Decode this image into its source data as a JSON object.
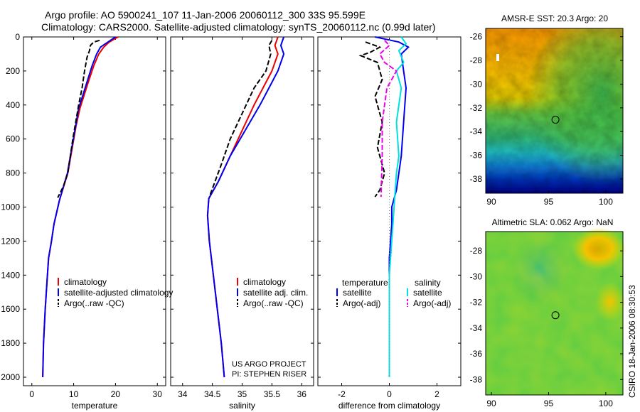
{
  "header": {
    "line1": "Argo profile: AO 5900241_107 11-Jan-2006 20060112_300 33S 95.599E",
    "line2": "Climatology: CARS2000. Satellite-adjusted climatology: synTS_20060112.nc (0.99d later)"
  },
  "colors": {
    "climatology": "#ee0000",
    "satellite": "#0000ee",
    "argo": "#000000",
    "salinity_satellite": "#00e0e0",
    "salinity_argo": "#ee00ee"
  },
  "chart_data": [
    {
      "id": "temperature",
      "type": "line",
      "xlabel": "temperature",
      "xlim": [
        -2,
        32
      ],
      "xticks": [
        0,
        10,
        20,
        30
      ],
      "ylim": [
        2050,
        0
      ],
      "yticks": [
        0,
        200,
        400,
        600,
        800,
        1000,
        1200,
        1400,
        1600,
        1800,
        2000
      ],
      "ylabel": "",
      "legend": [
        "climatology",
        "satellite-adjusted climatology",
        "Argo(..raw -QC)"
      ],
      "series": [
        {
          "name": "climatology",
          "color": "#ee0000",
          "style": "solid",
          "x": [
            20.6,
            18.5,
            17.2,
            16.0,
            14.8,
            13.3,
            11.5,
            10.6,
            8.6,
            6.6,
            5.3,
            4.7,
            4.0,
            3.6,
            3.2,
            2.8,
            2.6
          ],
          "y": [
            0,
            30,
            60,
            100,
            170,
            280,
            420,
            520,
            800,
            960,
            1100,
            1200,
            1300,
            1450,
            1600,
            1800,
            2000
          ]
        },
        {
          "name": "satellite-adjusted climatology",
          "color": "#0000ee",
          "style": "solid",
          "x": [
            20.0,
            18.2,
            16.4,
            15.5,
            14.4,
            13.0,
            11.2,
            10.5,
            8.5,
            6.6,
            5.3,
            4.7,
            4.0,
            3.6,
            3.2,
            2.8,
            2.6
          ],
          "y": [
            0,
            30,
            60,
            100,
            170,
            280,
            420,
            520,
            800,
            960,
            1100,
            1200,
            1300,
            1450,
            1600,
            1800,
            2000
          ]
        },
        {
          "name": "Argo(..raw -QC)",
          "color": "#000000",
          "style": "dashed",
          "x": [
            16.2,
            14.8,
            14.0,
            13.8,
            13.2,
            12.6,
            12.0,
            11.2,
            10.5,
            9.8,
            9.2,
            8.6,
            7.5,
            6.2
          ],
          "y": [
            20,
            30,
            50,
            80,
            120,
            200,
            300,
            400,
            500,
            600,
            700,
            800,
            880,
            945
          ]
        }
      ]
    },
    {
      "id": "salinity",
      "type": "line",
      "xlabel": "salinity",
      "xlim": [
        33.8,
        36.2
      ],
      "xticks": [
        34,
        34.5,
        35,
        35.5,
        36
      ],
      "ylim": [
        2050,
        0
      ],
      "legend": [
        "climatology",
        "satellite adj. clim.",
        "Argo(..raw -QC)"
      ],
      "annotation": [
        "US ARGO PROJECT",
        "PI: STEPHEN RISER"
      ],
      "series": [
        {
          "name": "climatology",
          "color": "#ee0000",
          "style": "solid",
          "x": [
            35.6,
            35.55,
            35.6,
            35.5,
            35.35,
            35.2,
            35.0,
            34.8,
            34.6,
            34.44,
            34.42,
            34.45,
            34.5,
            34.55,
            34.6,
            34.65,
            34.7
          ],
          "y": [
            0,
            50,
            100,
            200,
            300,
            400,
            550,
            700,
            850,
            950,
            1050,
            1200,
            1350,
            1500,
            1650,
            1800,
            2000
          ]
        },
        {
          "name": "satellite adj. clim.",
          "color": "#0000ee",
          "style": "solid",
          "x": [
            35.7,
            35.65,
            35.7,
            35.6,
            35.45,
            35.3,
            35.05,
            34.8,
            34.6,
            34.44,
            34.42,
            34.45,
            34.5,
            34.55,
            34.6,
            34.65,
            34.7
          ],
          "y": [
            0,
            50,
            100,
            200,
            300,
            400,
            550,
            700,
            850,
            950,
            1050,
            1200,
            1350,
            1500,
            1650,
            1800,
            2000
          ]
        },
        {
          "name": "Argo(..raw -QC)",
          "color": "#000000",
          "style": "dashed",
          "x": [
            35.5,
            35.45,
            35.48,
            35.4,
            35.2,
            35.0,
            34.8,
            34.65,
            34.45
          ],
          "y": [
            20,
            50,
            100,
            200,
            300,
            450,
            600,
            750,
            940
          ]
        }
      ]
    },
    {
      "id": "difference",
      "type": "line",
      "xlabel": "difference from climatology",
      "xlim": [
        -3,
        3
      ],
      "xticks": [
        -2,
        0,
        2
      ],
      "ylim": [
        2050,
        0
      ],
      "legend_groups": [
        {
          "title": "temperature",
          "items": [
            "satellite",
            "Argo(-adj)"
          ]
        },
        {
          "title": "salinity",
          "items": [
            "satellite",
            "Argo(-adj)"
          ]
        }
      ],
      "series": [
        {
          "name": "temperature satellite",
          "color": "#0000ee",
          "style": "solid",
          "x": [
            -0.6,
            0.4,
            0.8,
            0.5,
            0.6,
            0.7,
            0.6,
            0.5,
            0.4,
            0.3,
            0.1,
            0.1,
            0.0,
            0.0,
            0.0
          ],
          "y": [
            0,
            30,
            60,
            100,
            200,
            300,
            500,
            700,
            800,
            900,
            1000,
            1100,
            1300,
            1600,
            2000
          ]
        },
        {
          "name": "temperature Argo(-adj)",
          "color": "#000000",
          "style": "dashed",
          "x": [
            -1.0,
            -0.4,
            -0.8,
            -1.2,
            -0.5,
            -0.3,
            -0.6,
            -0.3,
            -0.5,
            -0.2,
            -0.4,
            -0.6
          ],
          "y": [
            30,
            60,
            90,
            110,
            150,
            250,
            350,
            500,
            650,
            800,
            900,
            940
          ]
        },
        {
          "name": "salinity satellite",
          "color": "#00e0e0",
          "style": "solid",
          "x": [
            0.5,
            0.7,
            0.4,
            0.6,
            0.3,
            0.5,
            0.3,
            0.4,
            0.3,
            0.2,
            0.1,
            0.0,
            0.0,
            0.0
          ],
          "y": [
            0,
            40,
            80,
            150,
            200,
            300,
            500,
            700,
            800,
            1000,
            1200,
            1400,
            1700,
            2000
          ]
        },
        {
          "name": "salinity Argo(-adj)",
          "color": "#ee00ee",
          "style": "dashed",
          "x": [
            -0.2,
            0.0,
            -0.4,
            -0.2,
            0.3,
            -0.1,
            -0.3,
            -0.3,
            -0.35
          ],
          "y": [
            20,
            50,
            100,
            150,
            200,
            300,
            500,
            700,
            940
          ]
        },
        {
          "name": "zero line",
          "color": "#888888",
          "style": "dotted",
          "x": [
            0,
            0
          ],
          "y": [
            0,
            2000
          ]
        }
      ]
    },
    {
      "id": "sst-map",
      "type": "heatmap",
      "title": "AMSR-E SST: 20.3 Argo: 20",
      "xticks": [
        90,
        95,
        100
      ],
      "yticks": [
        -26,
        -28,
        -30,
        -32,
        -34,
        -36,
        -38
      ],
      "xlim": [
        89.5,
        101.5
      ],
      "ylim": [
        -39.2,
        -25.3
      ],
      "marker": {
        "lon": 95.6,
        "lat": -33.0
      },
      "colormap": [
        "#ff9900",
        "#ffcc00",
        "#ccdd22",
        "#55cc55",
        "#33bb88",
        "#22bbcc",
        "#1188dd",
        "#0044cc",
        "#000099"
      ]
    },
    {
      "id": "sla-map",
      "type": "heatmap",
      "title": "Altimetric SLA: 0.062 Argo: NaN",
      "xticks": [
        90,
        95,
        100
      ],
      "yticks": [
        -28,
        -30,
        -32,
        -34,
        -36,
        -38
      ],
      "xlim": [
        89.5,
        101.5
      ],
      "ylim": [
        -39.2,
        -26.5
      ],
      "marker": {
        "lon": 95.6,
        "lat": -33.0
      },
      "side_label": "CSIRO 18-Jan-2006 08:30:53"
    }
  ]
}
